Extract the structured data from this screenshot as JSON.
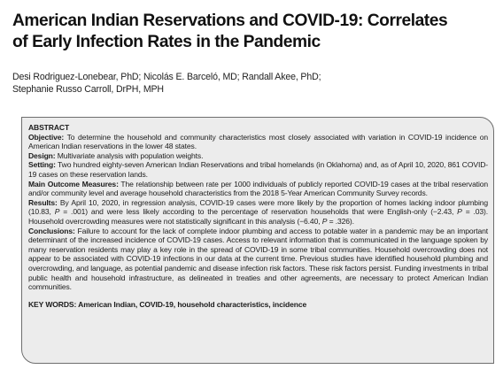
{
  "paper": {
    "title_lines": [
      "American Indian Reservations and COVID-19: Correlates",
      "of Early Infection Rates in the Pandemic"
    ],
    "author_lines": [
      "Desi Rodriguez-Lonebear, PhD; Nicolás E. Barceló, MD; Randall Akee, PhD;",
      "Stephanie Russo Carroll, DrPH, MPH"
    ]
  },
  "abstract": {
    "heading": "ABSTRACT",
    "objective_label": "Objective:",
    "objective_text": " To determine the household and community characteristics most closely associated with variation in COVID-19 incidence on American Indian reservations in the lower 48 states.",
    "design_label": "Design:",
    "design_text": " Multivariate analysis with population weights.",
    "setting_label": "Setting:",
    "setting_text": " Two hundred eighty-seven American Indian Reservations and tribal homelands (in Oklahoma) and, as of April 10, 2020, 861 COVID-19 cases on these reservation lands.",
    "outcome_label": "Main Outcome Measures:",
    "outcome_text": " The relationship between rate per 1000 individuals of publicly reported COVID-19 cases at the tribal reservation and/or community level and average household characteristics from the 2018 5-Year American Community Survey records.",
    "results_label": "Results:",
    "results_text_a": " By April 10, 2020, in regression analysis, COVID-19 cases were more likely by the proportion of homes lacking indoor plumbing (10.83, ",
    "results_p_1": "P",
    "results_text_b": " = .001) and were less likely according to the percentage of reservation households that were English-only (−2.43, ",
    "results_p_2": "P",
    "results_text_c": " = .03). Household overcrowding measures were not statistically significant in this analysis (−6.40, ",
    "results_p_3": "P",
    "results_text_d": " = .326).",
    "conclusions_label": "Conclusions:",
    "conclusions_text": " Failure to account for the lack of complete indoor plumbing and access to potable water in a pandemic may be an important determinant of the increased incidence of COVID-19 cases. Access to relevant information that is communicated in the language spoken by many reservation residents may play a key role in the spread of COVID-19 in some tribal communities. Household overcrowding does not appear to be associated with COVID-19 infections in our data at the current time. Previous studies have identified household plumbing and overcrowding, and language, as potential pandemic and disease infection risk factors. These risk factors persist. Funding investments in tribal public health and household infrastructure, as delineated in treaties and other agreements, are necessary to protect American Indian communities.",
    "keywords_label": "KEY WORDS:",
    "keywords_text": " American Indian, COVID-19, household characteristics, incidence"
  }
}
